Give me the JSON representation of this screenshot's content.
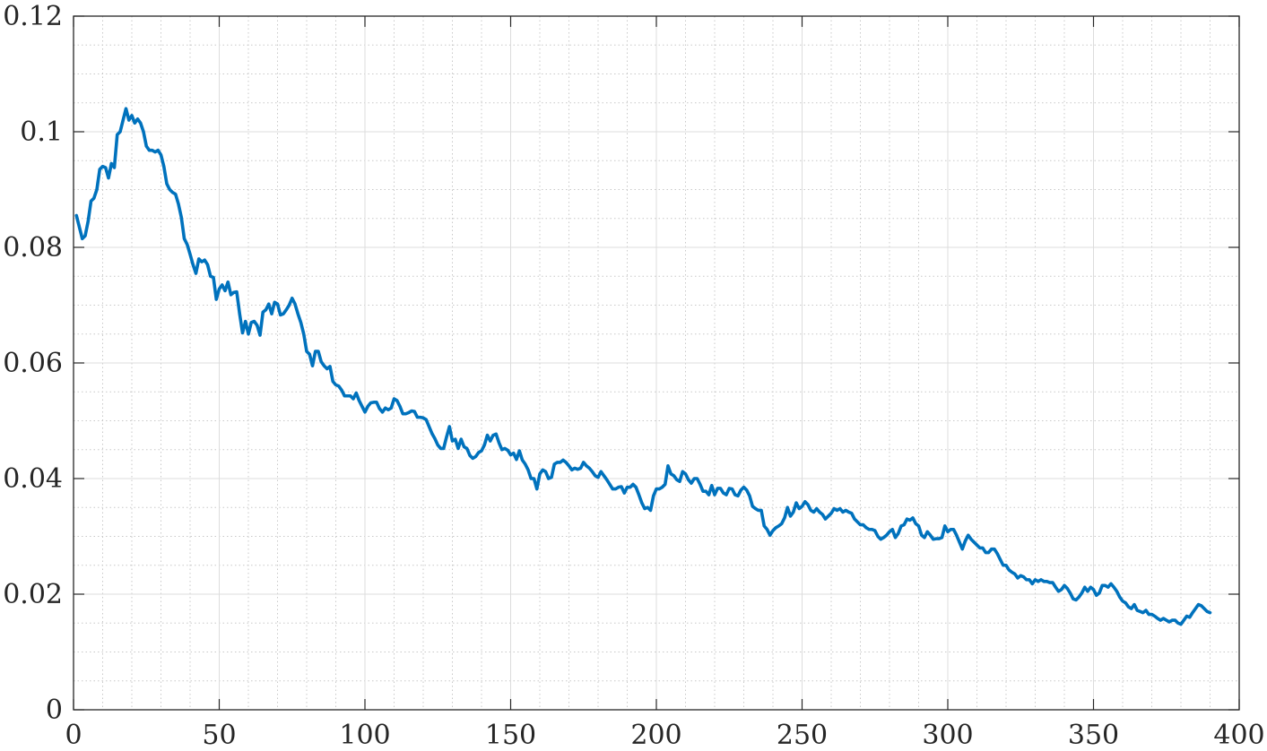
{
  "chart_data": {
    "type": "line",
    "title": "",
    "xlabel": "",
    "ylabel": "",
    "xlim": [
      0,
      400
    ],
    "ylim": [
      0,
      0.12
    ],
    "grid": true,
    "minor_grid": true,
    "x_ticks": [
      "0",
      "50",
      "100",
      "150",
      "200",
      "250",
      "300",
      "350",
      "400"
    ],
    "y_ticks": [
      "0",
      "0.02",
      "0.04",
      "0.06",
      "0.08",
      "0.1",
      "0.12"
    ],
    "line_color": "#0072BD",
    "x_step": 1,
    "x_start": 1,
    "series": [
      {
        "values": [
          0.0855,
          0.0835,
          0.0815,
          0.082,
          0.0845,
          0.088,
          0.0885,
          0.09,
          0.0935,
          0.094,
          0.0938,
          0.092,
          0.0945,
          0.0938,
          0.0995,
          0.1,
          0.102,
          0.104,
          0.102,
          0.1028,
          0.1015,
          0.1022,
          0.1015,
          0.1,
          0.0975,
          0.0968,
          0.0968,
          0.0965,
          0.0968,
          0.096,
          0.094,
          0.091,
          0.09,
          0.0895,
          0.0892,
          0.0875,
          0.0852,
          0.0815,
          0.0805,
          0.0788,
          0.077,
          0.0755,
          0.078,
          0.0775,
          0.0778,
          0.077,
          0.075,
          0.0748,
          0.071,
          0.0728,
          0.0735,
          0.0725,
          0.074,
          0.0718,
          0.0722,
          0.0723,
          0.0685,
          0.0652,
          0.0672,
          0.065,
          0.067,
          0.0672,
          0.0665,
          0.0648,
          0.0688,
          0.0692,
          0.0702,
          0.0685,
          0.0705,
          0.0702,
          0.0683,
          0.0685,
          0.0692,
          0.07,
          0.0712,
          0.0702,
          0.0685,
          0.067,
          0.065,
          0.062,
          0.0615,
          0.0595,
          0.062,
          0.062,
          0.0602,
          0.0595,
          0.059,
          0.0594,
          0.0568,
          0.0562,
          0.056,
          0.0553,
          0.0543,
          0.0543,
          0.0543,
          0.0538,
          0.0548,
          0.0535,
          0.0525,
          0.0515,
          0.0525,
          0.0531,
          0.0532,
          0.0532,
          0.0521,
          0.0515,
          0.0522,
          0.0519,
          0.0522,
          0.0538,
          0.0535,
          0.0525,
          0.0512,
          0.0512,
          0.0514,
          0.0517,
          0.0516,
          0.0506,
          0.0506,
          0.0505,
          0.0502,
          0.049,
          0.0478,
          0.0469,
          0.0458,
          0.0452,
          0.0452,
          0.0472,
          0.049,
          0.0465,
          0.0468,
          0.0452,
          0.0468,
          0.0455,
          0.0452,
          0.044,
          0.0435,
          0.0438,
          0.0445,
          0.0448,
          0.0458,
          0.0475,
          0.0465,
          0.0475,
          0.0477,
          0.0462,
          0.045,
          0.0452,
          0.0449,
          0.0441,
          0.0444,
          0.0433,
          0.0448,
          0.0432,
          0.0425,
          0.0415,
          0.04,
          0.04,
          0.0382,
          0.0408,
          0.0415,
          0.0412,
          0.04,
          0.0402,
          0.0425,
          0.0428,
          0.0428,
          0.0432,
          0.0428,
          0.0422,
          0.0415,
          0.0418,
          0.0416,
          0.0418,
          0.0428,
          0.0422,
          0.0418,
          0.0412,
          0.0405,
          0.0402,
          0.0412,
          0.0405,
          0.0398,
          0.039,
          0.0382,
          0.0382,
          0.0385,
          0.0386,
          0.0375,
          0.0385,
          0.0385,
          0.039,
          0.0385,
          0.0372,
          0.0358,
          0.0348,
          0.035,
          0.0345,
          0.037,
          0.0382,
          0.0382,
          0.0385,
          0.039,
          0.0422,
          0.0408,
          0.0405,
          0.0398,
          0.0395,
          0.0412,
          0.0408,
          0.0398,
          0.0392,
          0.04,
          0.04,
          0.039,
          0.0378,
          0.0378,
          0.0372,
          0.0388,
          0.0372,
          0.0383,
          0.0383,
          0.0375,
          0.0372,
          0.0383,
          0.0382,
          0.0372,
          0.037,
          0.038,
          0.0385,
          0.038,
          0.037,
          0.0352,
          0.0348,
          0.0345,
          0.0345,
          0.0318,
          0.0312,
          0.0302,
          0.031,
          0.0315,
          0.0318,
          0.0322,
          0.0332,
          0.035,
          0.0335,
          0.0342,
          0.0358,
          0.0348,
          0.0352,
          0.036,
          0.0355,
          0.0345,
          0.0342,
          0.0348,
          0.0342,
          0.0338,
          0.033,
          0.0335,
          0.034,
          0.0348,
          0.0345,
          0.0348,
          0.0342,
          0.0345,
          0.0342,
          0.034,
          0.033,
          0.0325,
          0.032,
          0.032,
          0.0315,
          0.0312,
          0.0312,
          0.031,
          0.03,
          0.0295,
          0.0298,
          0.0302,
          0.0308,
          0.0312,
          0.0298,
          0.0305,
          0.0318,
          0.032,
          0.033,
          0.0328,
          0.0332,
          0.0322,
          0.0318,
          0.0302,
          0.0298,
          0.0308,
          0.0302,
          0.0295,
          0.0296,
          0.0296,
          0.0298,
          0.0318,
          0.0308,
          0.0312,
          0.0312,
          0.0302,
          0.029,
          0.0278,
          0.0292,
          0.0302,
          0.0295,
          0.029,
          0.0285,
          0.028,
          0.028,
          0.0272,
          0.0272,
          0.0278,
          0.0278,
          0.027,
          0.026,
          0.025,
          0.025,
          0.0242,
          0.0238,
          0.0235,
          0.0228,
          0.0232,
          0.023,
          0.0225,
          0.0225,
          0.0218,
          0.0225,
          0.0222,
          0.0225,
          0.0222,
          0.0222,
          0.022,
          0.022,
          0.0212,
          0.0205,
          0.0208,
          0.0215,
          0.021,
          0.0202,
          0.0192,
          0.019,
          0.0195,
          0.0202,
          0.0212,
          0.0205,
          0.0212,
          0.0208,
          0.0198,
          0.0202,
          0.0215,
          0.0215,
          0.0212,
          0.0218,
          0.0212,
          0.0205,
          0.0195,
          0.0188,
          0.0185,
          0.0178,
          0.0175,
          0.0182,
          0.0172,
          0.017,
          0.0168,
          0.0172,
          0.0165,
          0.0165,
          0.0162,
          0.0158,
          0.0155,
          0.0158,
          0.0155,
          0.0152,
          0.0155,
          0.0155,
          0.015,
          0.0148,
          0.0155,
          0.0162,
          0.016,
          0.0168,
          0.0175,
          0.0182,
          0.018,
          0.0175,
          0.017,
          0.0168
        ]
      }
    ]
  }
}
